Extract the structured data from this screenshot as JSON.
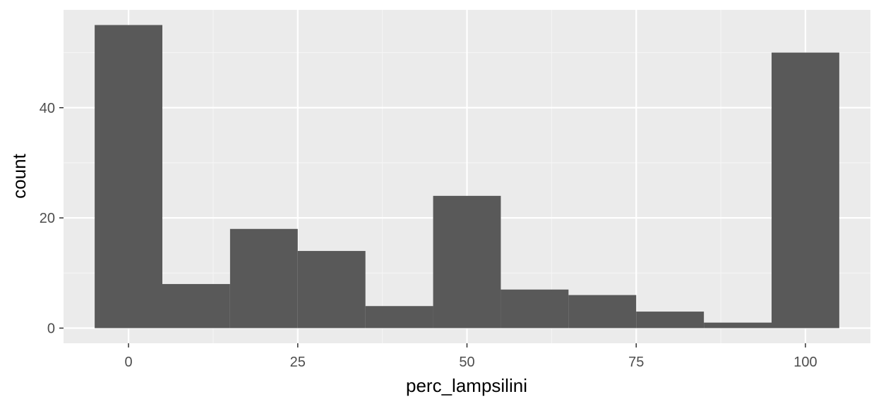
{
  "chart_data": {
    "type": "bar",
    "title": "",
    "xlabel": "perc_lampsilini",
    "ylabel": "count",
    "bin_width": 10,
    "bin_centers": [
      0,
      10,
      20,
      30,
      40,
      50,
      60,
      70,
      80,
      90,
      100
    ],
    "values": [
      55,
      8,
      18,
      14,
      4,
      24,
      7,
      6,
      3,
      1,
      50
    ],
    "xlim": [
      -9.6,
      109.6
    ],
    "ylim": [
      -2.75,
      57.75
    ],
    "x_ticks": [
      0,
      25,
      50,
      75,
      100
    ],
    "x_tick_labels": [
      "0",
      "25",
      "50",
      "75",
      "100"
    ],
    "y_ticks": [
      0,
      20,
      40
    ],
    "y_tick_labels": [
      "0",
      "20",
      "40"
    ],
    "grid": true,
    "colors": {
      "panel_background": "#ebebeb",
      "grid_major": "#ffffff",
      "grid_minor": "#f5f5f5",
      "bar_fill": "#595959",
      "tick_color": "#333333"
    }
  }
}
